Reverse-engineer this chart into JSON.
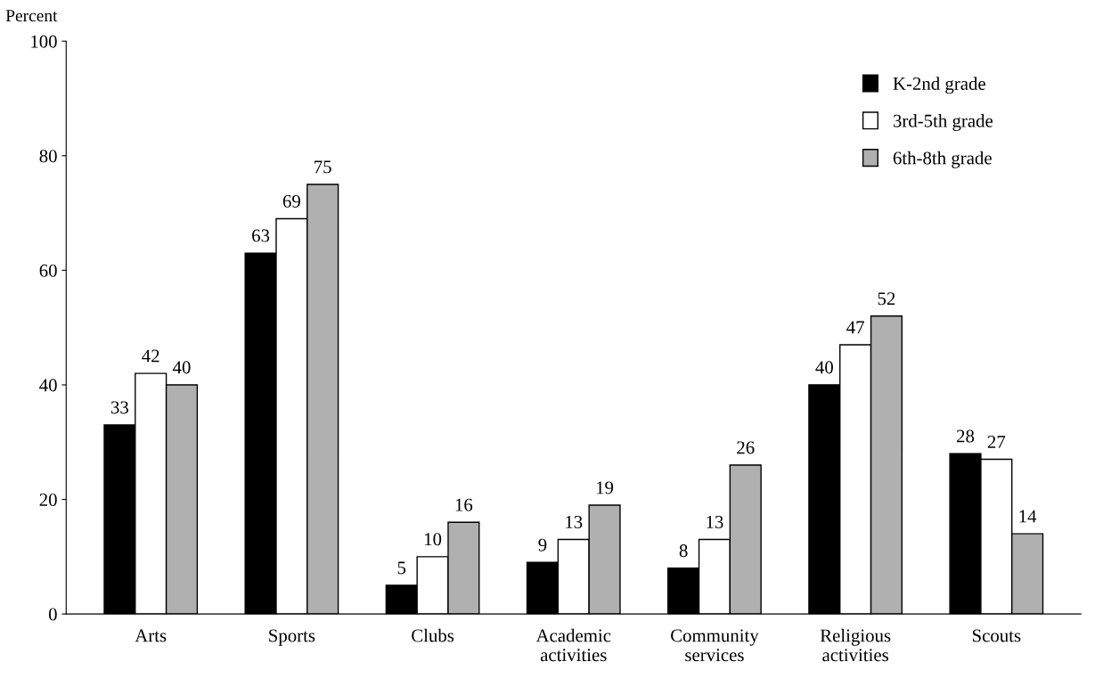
{
  "chart_data": {
    "type": "bar",
    "ylabel": "Percent",
    "categories": [
      "Arts",
      "Sports",
      "Clubs",
      "Academic\nactivities",
      "Community\nservices",
      "Religious\nactivities",
      "Scouts"
    ],
    "series": [
      {
        "name": "K-2nd grade",
        "color": "#000000",
        "values": [
          33,
          63,
          5,
          9,
          8,
          40,
          28
        ]
      },
      {
        "name": "3rd-5th grade",
        "color": "#ffffff",
        "values": [
          42,
          69,
          10,
          13,
          13,
          47,
          27
        ]
      },
      {
        "name": "6th-8th grade",
        "color": "#b0b0b0",
        "values": [
          40,
          75,
          16,
          19,
          26,
          52,
          14
        ]
      }
    ],
    "ylim": [
      0,
      100
    ],
    "yticks": [
      0,
      20,
      40,
      60,
      80,
      100
    ],
    "grid": false,
    "legend": "top right",
    "data_labels": true
  }
}
